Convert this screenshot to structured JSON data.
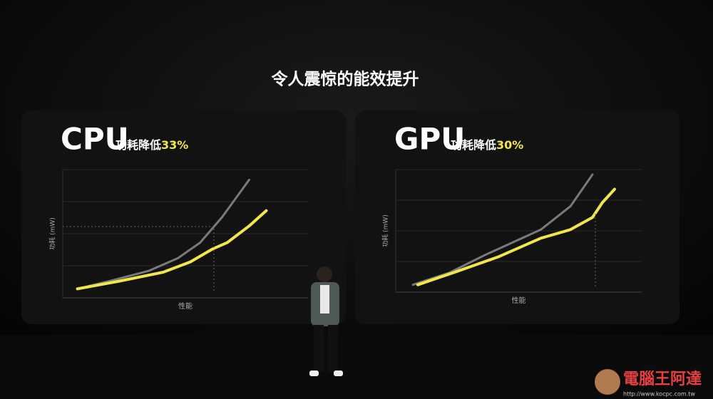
{
  "title": "令人震惊的能效提升",
  "chart_data": [
    {
      "type": "line",
      "title": "CPU",
      "subtitle": "功耗降低",
      "annotation": "33%",
      "xlabel": "性能",
      "ylabel": "功耗 (mW)",
      "xlim": [
        0,
        100
      ],
      "ylim": [
        0,
        100
      ],
      "series": [
        {
          "color": "#7a7a7a",
          "x": [
            6,
            21,
            35,
            47,
            56,
            65,
            76
          ],
          "values": [
            7,
            14,
            21,
            31,
            43,
            63,
            92
          ]
        },
        {
          "color": "#f2e64a",
          "x": [
            6,
            23,
            41,
            52,
            61,
            67,
            76,
            83
          ],
          "values": [
            7,
            13,
            20,
            28,
            38,
            43,
            56,
            68
          ]
        }
      ]
    },
    {
      "type": "line",
      "title": "GPU",
      "subtitle": "功耗降低",
      "annotation": "30%",
      "xlabel": "性能",
      "ylabel": "功耗 (mW)",
      "xlim": [
        0,
        100
      ],
      "ylim": [
        0,
        100
      ],
      "series": [
        {
          "color": "#7a7a7a",
          "x": [
            7,
            22,
            36,
            48,
            59,
            71,
            80
          ],
          "values": [
            6,
            16,
            30,
            41,
            51,
            70,
            96
          ]
        },
        {
          "color": "#f2e64a",
          "x": [
            9,
            25,
            42,
            59,
            71,
            80,
            84,
            89
          ],
          "values": [
            6,
            17,
            29,
            44,
            51,
            61,
            73,
            84
          ]
        }
      ]
    }
  ],
  "watermark": {
    "name": "電腦王阿達",
    "url": "http://www.kocpc.com.tw"
  }
}
